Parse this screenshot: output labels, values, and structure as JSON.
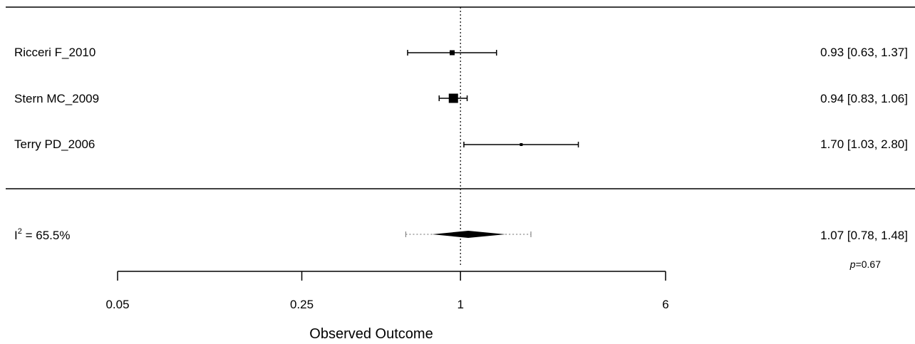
{
  "chart_data": {
    "type": "forest",
    "xlabel": "Observed Outcome",
    "x_scale": "log",
    "ticks": [
      {
        "value": 0.05,
        "label": "0.05"
      },
      {
        "value": 0.25,
        "label": "0.25"
      },
      {
        "value": 1,
        "label": "1"
      },
      {
        "value": 6,
        "label": "6"
      }
    ],
    "reference_line": 1,
    "studies": [
      {
        "name": "Ricceri F_2010",
        "estimate": 0.93,
        "lower": 0.63,
        "upper": 1.37,
        "weight_rank": 2,
        "ci_text": "0.93 [0.63, 1.37]"
      },
      {
        "name": "Stern MC_2009",
        "estimate": 0.94,
        "lower": 0.83,
        "upper": 1.06,
        "weight_rank": 3,
        "ci_text": "0.94 [0.83, 1.06]"
      },
      {
        "name": "Terry PD_2006",
        "estimate": 1.7,
        "lower": 1.03,
        "upper": 2.8,
        "weight_rank": 1,
        "ci_text": "1.70 [1.03, 2.80]"
      }
    ],
    "summary": {
      "estimate": 1.07,
      "lower": 0.78,
      "upper": 1.48,
      "pi_lower": 0.62,
      "pi_upper": 1.85,
      "ci_text": "1.07 [0.78, 1.48]",
      "heterogeneity_prefix": "I",
      "heterogeneity_sup": "2",
      "heterogeneity_value": " = 65.5%",
      "p_label": "p",
      "p_value": "=0.67"
    }
  }
}
